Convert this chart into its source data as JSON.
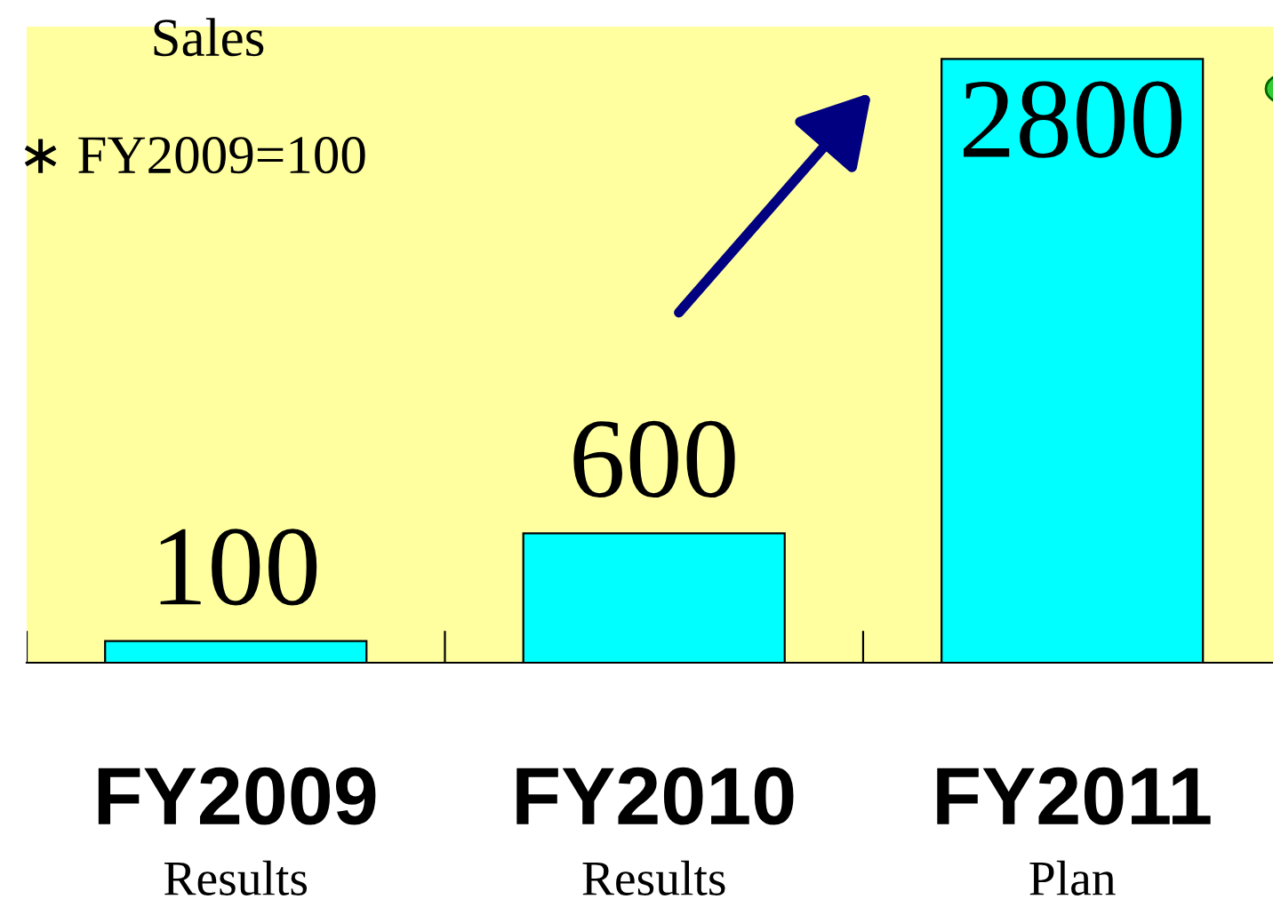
{
  "chart_data": {
    "type": "bar",
    "title": "Sales",
    "subtitle": "∗ FY2009=100",
    "categories": [
      "FY2009\nResults",
      "FY2010\nResults",
      "FY2011\nPlan"
    ],
    "values": [
      100,
      600,
      2800
    ],
    "color": "#00ffff",
    "ylim": [
      0,
      2950
    ],
    "data_labels": true
  }
}
